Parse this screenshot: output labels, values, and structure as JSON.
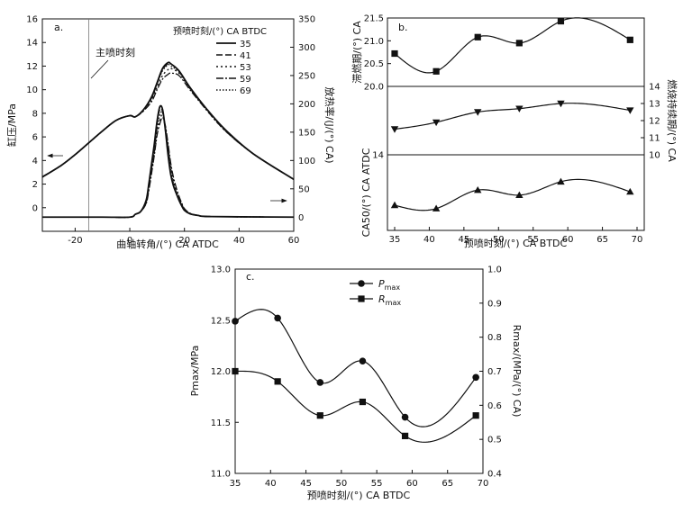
{
  "chart_data": [
    {
      "panel": "a.",
      "type": "line",
      "xlabel": "曲轴转角/(°) CA ATDC",
      "ylabel_left": "缸压/MPa",
      "ylabel_right": "放热率/(J/(°) CA)",
      "xlim": [
        -32,
        60
      ],
      "ylim_left": [
        -2,
        16
      ],
      "ylim_right": [
        -25,
        350
      ],
      "xticks": [
        -20,
        0,
        20,
        40,
        60
      ],
      "yticks_left": [
        0,
        2,
        4,
        6,
        8,
        10,
        12,
        14,
        16
      ],
      "yticks_right": [
        0,
        50,
        100,
        150,
        200,
        250,
        300,
        350
      ],
      "annotation": "主喷时刻",
      "annotation_x": -15,
      "legend_title": "预喷时刻/(°) CA BTDC",
      "legend_placement": "top-right",
      "legend": [
        "35",
        "41",
        "53",
        "59",
        "69"
      ],
      "pressure_series": [
        {
          "name": "35",
          "x": [
            -32,
            -25,
            -20,
            -15,
            -10,
            -5,
            0,
            2,
            5,
            8,
            10,
            12,
            14,
            15,
            18,
            22,
            28,
            35,
            45,
            60
          ],
          "y": [
            2.6,
            3.6,
            4.5,
            5.5,
            6.5,
            7.4,
            7.8,
            7.7,
            8.3,
            9.4,
            10.6,
            11.8,
            12.3,
            12.2,
            11.6,
            10.2,
            8.4,
            6.6,
            4.6,
            2.4
          ]
        },
        {
          "name": "41",
          "x": [
            -32,
            -25,
            -20,
            -15,
            -10,
            -5,
            0,
            2,
            5,
            8,
            10,
            12,
            14,
            15,
            18,
            22,
            28,
            35,
            45,
            60
          ],
          "y": [
            2.6,
            3.6,
            4.5,
            5.5,
            6.5,
            7.4,
            7.8,
            7.7,
            8.3,
            9.3,
            10.5,
            11.7,
            12.2,
            12.2,
            11.6,
            10.2,
            8.4,
            6.6,
            4.6,
            2.4
          ]
        },
        {
          "name": "53",
          "x": [
            -32,
            -25,
            -20,
            -15,
            -10,
            -5,
            0,
            2,
            5,
            8,
            10,
            12,
            14,
            15,
            18,
            22,
            28,
            35,
            45,
            60
          ],
          "y": [
            2.6,
            3.6,
            4.5,
            5.5,
            6.5,
            7.4,
            7.8,
            7.7,
            8.2,
            9.1,
            10.2,
            11.2,
            11.7,
            11.8,
            11.4,
            10.1,
            8.3,
            6.5,
            4.6,
            2.4
          ]
        },
        {
          "name": "59",
          "x": [
            -32,
            -25,
            -20,
            -15,
            -10,
            -5,
            0,
            2,
            5,
            8,
            10,
            12,
            14,
            15,
            18,
            22,
            28,
            35,
            45,
            60
          ],
          "y": [
            2.6,
            3.6,
            4.5,
            5.5,
            6.5,
            7.4,
            7.8,
            7.7,
            8.2,
            9.0,
            10.0,
            10.9,
            11.3,
            11.4,
            11.2,
            10.0,
            8.3,
            6.5,
            4.6,
            2.4
          ]
        },
        {
          "name": "69",
          "x": [
            -32,
            -25,
            -20,
            -15,
            -10,
            -5,
            0,
            2,
            5,
            8,
            10,
            12,
            14,
            15,
            18,
            22,
            28,
            35,
            45,
            60
          ],
          "y": [
            2.6,
            3.6,
            4.5,
            5.5,
            6.5,
            7.4,
            7.8,
            7.7,
            8.3,
            9.3,
            10.5,
            11.6,
            12.1,
            12.0,
            11.5,
            10.2,
            8.4,
            6.6,
            4.6,
            2.4
          ]
        }
      ],
      "hrr_series": [
        {
          "name": "35",
          "x": [
            -32,
            -10,
            0,
            2,
            4,
            6,
            7,
            8,
            9,
            10,
            11,
            12,
            13,
            14,
            15,
            16,
            17,
            18,
            19,
            20,
            22,
            25,
            30,
            60
          ],
          "y": [
            0,
            0,
            0,
            5,
            10,
            30,
            60,
            95,
            130,
            170,
            195,
            190,
            155,
            110,
            75,
            55,
            42,
            30,
            20,
            12,
            6,
            3,
            1,
            0
          ]
        },
        {
          "name": "41",
          "x": [
            -32,
            -10,
            0,
            2,
            4,
            6,
            7,
            8,
            9,
            10,
            11,
            12,
            13,
            14,
            15,
            16,
            17,
            18,
            19,
            20,
            22,
            25,
            30,
            60
          ],
          "y": [
            0,
            0,
            0,
            5,
            10,
            28,
            55,
            90,
            125,
            165,
            190,
            186,
            155,
            112,
            78,
            57,
            43,
            31,
            21,
            13,
            6,
            3,
            1,
            0
          ]
        },
        {
          "name": "53",
          "x": [
            -32,
            -10,
            0,
            2,
            4,
            6,
            7,
            8,
            9,
            10,
            11,
            12,
            13,
            14,
            15,
            16,
            17,
            18,
            19,
            20,
            22,
            25,
            30,
            60
          ],
          "y": [
            0,
            0,
            0,
            5,
            10,
            25,
            50,
            80,
            115,
            150,
            172,
            180,
            160,
            125,
            90,
            65,
            48,
            34,
            23,
            14,
            6,
            3,
            1,
            0
          ]
        },
        {
          "name": "59",
          "x": [
            -32,
            -10,
            0,
            2,
            4,
            6,
            7,
            8,
            9,
            10,
            11,
            12,
            13,
            14,
            15,
            16,
            17,
            18,
            19,
            20,
            22,
            25,
            30,
            60
          ],
          "y": [
            0,
            0,
            0,
            5,
            10,
            24,
            48,
            78,
            110,
            145,
            165,
            176,
            162,
            130,
            95,
            70,
            52,
            37,
            25,
            15,
            7,
            3,
            1,
            0
          ]
        },
        {
          "name": "69",
          "x": [
            -32,
            -10,
            0,
            2,
            4,
            6,
            7,
            8,
            9,
            10,
            11,
            12,
            13,
            14,
            15,
            16,
            17,
            18,
            19,
            20,
            22,
            25,
            30,
            60
          ],
          "y": [
            0,
            0,
            0,
            5,
            10,
            26,
            52,
            85,
            120,
            158,
            180,
            185,
            160,
            120,
            85,
            60,
            45,
            32,
            22,
            13,
            6,
            3,
            1,
            0
          ]
        }
      ]
    },
    {
      "panel": "b.",
      "type": "scatter",
      "xlabel": "预喷时刻/(°) CA BTDC",
      "xlim": [
        35,
        70
      ],
      "xticks": [
        35,
        40,
        45,
        50,
        55,
        60,
        65,
        70
      ],
      "subplots": [
        {
          "name": "滞燃期",
          "ylabel": "滞燃期/(°) CA",
          "axis": "left",
          "ylim": [
            20.0,
            21.5
          ],
          "yticks": [
            20.0,
            20.5,
            21.0,
            21.5
          ],
          "marker": "square",
          "x": [
            35,
            41,
            47,
            53,
            59,
            69
          ],
          "y": [
            20.72,
            20.33,
            21.08,
            20.95,
            21.43,
            21.02
          ]
        },
        {
          "name": "燃烧持续期",
          "ylabel": "燃烧持续期/(°) CA",
          "axis": "right",
          "ylim": [
            10,
            14
          ],
          "yticks": [
            10,
            11,
            12,
            13,
            14
          ],
          "marker": "triangle-down",
          "x": [
            35,
            41,
            47,
            53,
            59,
            69
          ],
          "y": [
            11.5,
            11.9,
            12.5,
            12.7,
            13.0,
            12.6
          ]
        },
        {
          "name": "CA50",
          "ylabel": "CA50/(°) CA ATDC",
          "axis": "left",
          "ylim": [
            9.5,
            14
          ],
          "ytick_labels": [
            14
          ],
          "marker": "triangle-up",
          "x": [
            35,
            41,
            47,
            53,
            59,
            69
          ],
          "y": [
            11.0,
            10.8,
            11.9,
            11.6,
            12.4,
            11.8
          ]
        }
      ]
    },
    {
      "panel": "c.",
      "type": "scatter",
      "xlabel": "预喷时刻/(°) CA BTDC",
      "ylabel_left": "Pmax/MPa",
      "ylabel_right": "Rmax/(MPa/(°) CA)",
      "xlim": [
        35,
        70
      ],
      "xticks": [
        35,
        40,
        45,
        50,
        55,
        60,
        65,
        70
      ],
      "ylim_left": [
        11.0,
        13.0
      ],
      "yticks_left": [
        "11.0",
        "11.5",
        "12.0",
        "12.5",
        "13.0"
      ],
      "ylim_right": [
        0.4,
        1.0
      ],
      "yticks_right": [
        "0.4",
        "0.5",
        "0.6",
        "0.7",
        "0.8",
        "0.9",
        "1.0"
      ],
      "legend_placement": "top-left",
      "series": [
        {
          "name": "Pmax",
          "marker": "circle",
          "axis": "left",
          "x": [
            35,
            41,
            47,
            53,
            59,
            69
          ],
          "y": [
            12.49,
            12.52,
            11.89,
            12.1,
            11.55,
            11.94
          ]
        },
        {
          "name": "Rmax",
          "marker": "square",
          "axis": "right",
          "x": [
            35,
            41,
            47,
            53,
            59,
            69
          ],
          "y": [
            0.7,
            0.67,
            0.57,
            0.61,
            0.51,
            0.57
          ]
        }
      ]
    }
  ]
}
